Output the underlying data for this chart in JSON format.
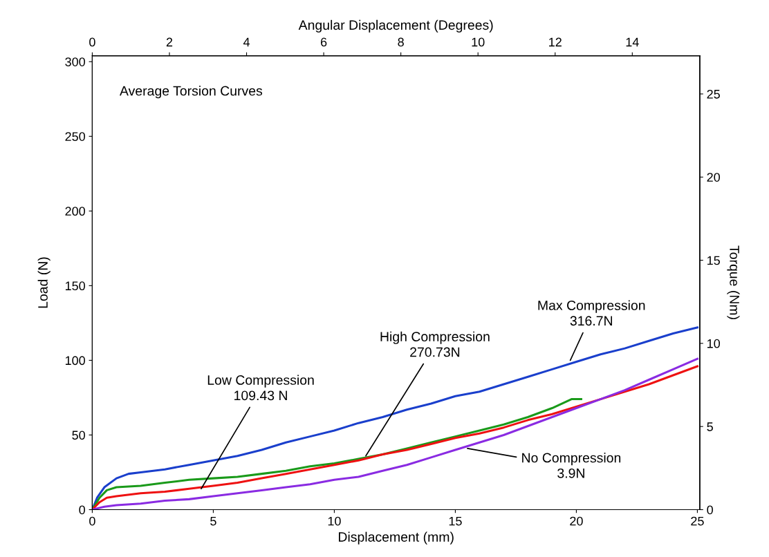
{
  "chart_data": {
    "type": "line",
    "xlabel": "Displacement (mm)",
    "ylabel": "Load (N)",
    "y2label": "Torque (Nm)",
    "x2label": "Angular Displacement (Degrees)",
    "xlim": [
      0,
      25.1
    ],
    "xticks": [
      0,
      5,
      10,
      15,
      20,
      25
    ],
    "ylim": [
      0,
      304
    ],
    "yticks": [
      0,
      50,
      100,
      150,
      200,
      250,
      300
    ],
    "y2lim": [
      0,
      27.3
    ],
    "y2ticks": [
      0,
      5,
      10,
      15,
      20,
      25
    ],
    "x2lim": [
      0,
      15.75
    ],
    "x2ticks": [
      0,
      2,
      4,
      6,
      8,
      10,
      12,
      14
    ],
    "grid": false,
    "legend": false,
    "marker": "none",
    "line_style": "solid",
    "series": [
      {
        "color": "#1a3fcc",
        "x": [
          0,
          0.2,
          0.5,
          1,
          1.5,
          2,
          3,
          4,
          5,
          6,
          7,
          8,
          9,
          10,
          11,
          12,
          13,
          14,
          15,
          16,
          17,
          18,
          19,
          20,
          21,
          22,
          23,
          24,
          25
        ],
        "values": [
          0,
          8,
          15,
          21,
          24,
          25,
          27,
          30,
          33,
          36,
          40,
          45,
          49,
          53,
          58,
          62,
          67,
          71,
          76,
          79,
          84,
          89,
          94,
          99,
          104,
          108,
          113,
          118,
          122
        ]
      },
      {
        "color": "#1a9a1a",
        "x": [
          0,
          0.3,
          0.6,
          1,
          2,
          3,
          4,
          5,
          6,
          7,
          8,
          9,
          10,
          11,
          12,
          13,
          14,
          15,
          16,
          17,
          18,
          19,
          19.8,
          20.2
        ],
        "values": [
          0,
          8,
          13,
          15,
          16,
          18,
          20,
          21,
          22,
          24,
          26,
          29,
          31,
          34,
          37,
          41,
          45,
          49,
          53,
          57,
          62,
          68,
          74,
          74
        ]
      },
      {
        "color": "#ee1111",
        "x": [
          0,
          0.3,
          0.6,
          1,
          2,
          3,
          4,
          5,
          6,
          7,
          8,
          9,
          10,
          11,
          12,
          13,
          14,
          15,
          16,
          17,
          18,
          19,
          20,
          21,
          22,
          23,
          24,
          25
        ],
        "values": [
          0,
          5,
          8,
          9,
          11,
          12,
          14,
          16,
          18,
          21,
          24,
          27,
          30,
          33,
          37,
          40,
          44,
          48,
          51,
          55,
          60,
          64,
          69,
          74,
          79,
          84,
          90,
          96
        ]
      },
      {
        "color": "#8a2be2",
        "x": [
          0,
          0.5,
          1,
          2,
          3,
          4,
          5,
          6,
          7,
          8,
          9,
          10,
          11,
          12,
          13,
          14,
          15,
          16,
          17,
          18,
          19,
          20,
          21,
          22,
          23,
          24,
          25
        ],
        "values": [
          0,
          2,
          3,
          4,
          6,
          7,
          9,
          11,
          13,
          15,
          17,
          20,
          22,
          26,
          30,
          35,
          40,
          45,
          50,
          56,
          62,
          68,
          74,
          80,
          87,
          94,
          101
        ]
      }
    ],
    "annotations": [
      {
        "text": "Max Compression\n316.7N",
        "x": 19.75,
        "y": 100
      },
      {
        "text": "High Compression\n270.73N",
        "x": 11.3,
        "y": 36
      },
      {
        "text": "Low Compression\n109.43 N",
        "x": 4.5,
        "y": 14
      },
      {
        "text": "No Compression\n3.9N",
        "x": 15.5,
        "y": 41
      },
      "Average Torsion Curves"
    ]
  }
}
